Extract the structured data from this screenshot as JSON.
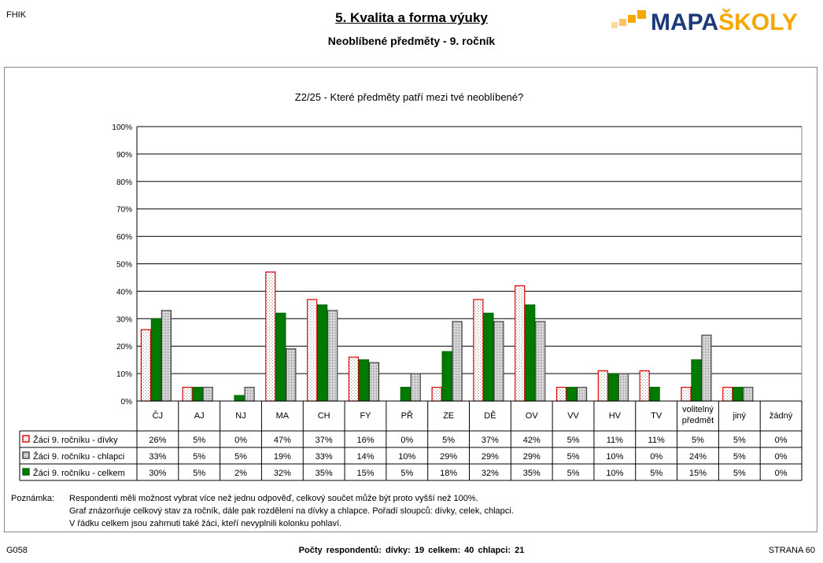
{
  "header": {
    "corner_code": "FHIK",
    "title": "5. Kvalita a forma výuky",
    "subtitle": "Neoblíbené předměty -  9. ročník",
    "logo_text": "MAPAŠKOLY",
    "logo_colors": {
      "primary": "#1b3a7a",
      "accent": "#f6a800"
    }
  },
  "chart_data": {
    "type": "bar",
    "title": "Z2/25 - Které předměty patří mezi tvé neoblíbené?",
    "ylim": [
      0,
      100
    ],
    "yticks": [
      "0%",
      "10%",
      "20%",
      "30%",
      "40%",
      "50%",
      "60%",
      "70%",
      "80%",
      "90%",
      "100%"
    ],
    "grid": true,
    "legend": "table-below",
    "categories": [
      [
        "ČJ"
      ],
      [
        "AJ"
      ],
      [
        "NJ"
      ],
      [
        "MA"
      ],
      [
        "CH"
      ],
      [
        "FY"
      ],
      [
        "PŘ"
      ],
      [
        "ZE"
      ],
      [
        "DĚ"
      ],
      [
        "OV"
      ],
      [
        "VV"
      ],
      [
        "HV"
      ],
      [
        "TV"
      ],
      [
        "volitelný",
        "předmět"
      ],
      [
        "jiný"
      ],
      [
        "žádný"
      ]
    ],
    "series": [
      {
        "name": "Žáci 9. ročníku - dívky",
        "color": "#e00000",
        "fill": "dotted-white",
        "values": [
          26,
          5,
          0,
          47,
          37,
          16,
          0,
          5,
          37,
          42,
          5,
          11,
          11,
          5,
          5,
          0
        ],
        "labels": [
          "26%",
          "5%",
          "0%",
          "47%",
          "37%",
          "16%",
          "0%",
          "5%",
          "37%",
          "42%",
          "5%",
          "11%",
          "11%",
          "5%",
          "5%",
          "0%"
        ]
      },
      {
        "name": "Žáci 9. ročníku - chlapci",
        "color": "#404040",
        "fill": "dotted-grey",
        "values": [
          33,
          5,
          5,
          19,
          33,
          14,
          10,
          29,
          29,
          29,
          5,
          10,
          0,
          24,
          5,
          0
        ],
        "labels": [
          "33%",
          "5%",
          "5%",
          "19%",
          "33%",
          "14%",
          "10%",
          "29%",
          "29%",
          "29%",
          "5%",
          "10%",
          "0%",
          "24%",
          "5%",
          "0%"
        ]
      },
      {
        "name": "Žáci 9. ročníku - celkem",
        "color": "#006600",
        "fill": "solid-green",
        "values": [
          30,
          5,
          2,
          32,
          35,
          15,
          5,
          18,
          32,
          35,
          5,
          10,
          5,
          15,
          5,
          0
        ],
        "labels": [
          "30%",
          "5%",
          "2%",
          "32%",
          "35%",
          "15%",
          "5%",
          "18%",
          "32%",
          "35%",
          "5%",
          "10%",
          "5%",
          "15%",
          "5%",
          "0%"
        ]
      }
    ],
    "plot_order": [
      0,
      2,
      1
    ]
  },
  "note": {
    "label": "Poznámka:",
    "lines": [
      "Respondenti měli možnost vybrat více než jednu odpověď, celkový součet může být proto vyšší než 100%.",
      "Graf znázorňuje celkový stav za ročník, dále pak rozdělení na dívky a chlapce. Pořadí sloupců: dívky, celek, chlapci.",
      "V řádku celkem jsou zahrnuti také žáci, kteří nevyplnili kolonku pohlaví."
    ]
  },
  "footer": {
    "code": "G058",
    "respondents": "Počty respondentů:   dívky: 19   celkem: 40   chlapci: 21",
    "page": "STRANA 60"
  }
}
